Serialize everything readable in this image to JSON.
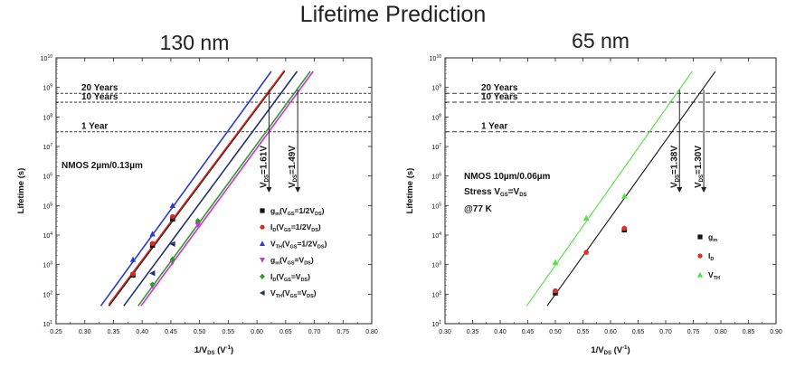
{
  "figure_title": "Lifetime Prediction",
  "chart_data": [
    {
      "type": "line",
      "title": "130 nm",
      "xlabel_main": "1/V",
      "xlabel_sub": "DS",
      "xlabel_unit": "(V",
      "xlabel_unit_sup": "-1",
      "xlabel_unit_end": ")",
      "ylabel": "Lifetime (s)",
      "xlim": [
        0.25,
        0.8
      ],
      "ylim_exp": [
        1,
        10
      ],
      "y_scale": "log",
      "x_ticks": [
        "0.25",
        "0.30",
        "0.35",
        "0.40",
        "0.45",
        "0.50",
        "0.55",
        "0.60",
        "0.65",
        "0.70",
        "0.75",
        "0.80"
      ],
      "y_tick_exps": [
        1,
        2,
        3,
        4,
        5,
        6,
        7,
        8,
        9,
        10
      ],
      "hlines": [
        {
          "label": "20 Years",
          "y": 631000000
        },
        {
          "label": "10 Years",
          "y": 315000000
        },
        {
          "label": "1 Year",
          "y": 31500000
        }
      ],
      "device_label": "NMOS 2µm/0.13µm",
      "vlines": [
        {
          "x": 0.621,
          "label_main": "V",
          "label_sub": "DS",
          "label_val": "=1.61V"
        },
        {
          "x": 0.671,
          "label_main": "V",
          "label_sub": "DS",
          "label_val": "=1.49V"
        }
      ],
      "series": [
        {
          "legend_main": "g",
          "legend_sub": "m",
          "legend_cond": "(V",
          "legend_cond_sub": "GS",
          "legend_cond_val": "=1/2V",
          "legend_cond_sub2": "DS",
          "legend_end": ")",
          "color": "#111111",
          "marker": "square",
          "points": [
            [
              0.384,
              440
            ],
            [
              0.418,
              4500
            ],
            [
              0.453,
              35000
            ]
          ],
          "line": [
            [
              0.342,
              40
            ],
            [
              0.648,
              3500000000
            ]
          ]
        },
        {
          "legend_main": "I",
          "legend_sub": "D",
          "legend_cond": "(V",
          "legend_cond_sub": "GS",
          "legend_cond_val": "=1/2V",
          "legend_cond_sub2": "DS",
          "legend_end": ")",
          "color": "#d42a20",
          "marker": "circle",
          "points": [
            [
              0.384,
              480
            ],
            [
              0.418,
              5200
            ],
            [
              0.453,
              42000
            ]
          ],
          "line": [
            [
              0.342,
              45
            ],
            [
              0.648,
              3800000000
            ]
          ]
        },
        {
          "legend_main": "V",
          "legend_sub": "TH",
          "legend_cond": "(V",
          "legend_cond_sub": "GS",
          "legend_cond_val": "=1/2V",
          "legend_cond_sub2": "DS",
          "legend_end": ")",
          "color": "#2a3ad8",
          "marker": "triangle-up",
          "points": [
            [
              0.384,
              1500
            ],
            [
              0.418,
              11000
            ],
            [
              0.453,
              100000
            ]
          ],
          "line": [
            [
              0.328,
              40
            ],
            [
              0.625,
              3500000000
            ]
          ]
        },
        {
          "legend_main": "g",
          "legend_sub": "m",
          "legend_cond": "(V",
          "legend_cond_sub": "GS",
          "legend_cond_val": "=V",
          "legend_cond_sub2": "DS",
          "legend_end": ")",
          "color": "#d030d8",
          "marker": "triangle-down",
          "points": [
            [
              0.418,
              190
            ],
            [
              0.453,
              1200
            ],
            [
              0.497,
              22000
            ]
          ],
          "line": [
            [
              0.398,
              40
            ],
            [
              0.698,
              3500000000
            ]
          ]
        },
        {
          "legend_main": "I",
          "legend_sub": "D",
          "legend_cond": "(V",
          "legend_cond_sub": "GS",
          "legend_cond_val": "=V",
          "legend_cond_sub2": "DS",
          "legend_end": ")",
          "color": "#2e9a2e",
          "marker": "diamond",
          "points": [
            [
              0.418,
              210
            ],
            [
              0.453,
              1500
            ],
            [
              0.497,
              30000
            ]
          ],
          "line": [
            [
              0.393,
              40
            ],
            [
              0.693,
              3500000000
            ]
          ]
        },
        {
          "legend_main": "V",
          "legend_sub": "TH",
          "legend_cond": "(V",
          "legend_cond_sub": "GS",
          "legend_cond_val": "=V",
          "legend_cond_sub2": "DS",
          "legend_end": ")",
          "color": "#223070",
          "marker": "triangle-left",
          "points": [
            [
              0.418,
              510
            ],
            [
              0.453,
              5000
            ]
          ],
          "line": [
            [
              0.368,
              40
            ],
            [
              0.67,
              3500000000
            ]
          ]
        }
      ]
    },
    {
      "type": "line",
      "title": "65 nm",
      "xlabel_main": "1/V",
      "xlabel_sub": "DS",
      "xlabel_unit": "(V",
      "xlabel_unit_sup": "-1",
      "xlabel_unit_end": ")",
      "ylabel": "Lifetime (s)",
      "xlim": [
        0.3,
        0.9
      ],
      "ylim_exp": [
        1,
        10
      ],
      "y_scale": "log",
      "x_ticks": [
        "0.30",
        "0.35",
        "0.40",
        "0.45",
        "0.50",
        "0.55",
        "0.60",
        "0.65",
        "0.70",
        "0.75",
        "0.80",
        "0.85",
        "0.90"
      ],
      "y_tick_exps": [
        1,
        2,
        3,
        4,
        5,
        6,
        7,
        8,
        9,
        10
      ],
      "hlines": [
        {
          "label": "20 Years",
          "y": 631000000
        },
        {
          "label": "10 Years",
          "y": 315000000
        },
        {
          "label": "1 Year",
          "y": 31500000
        }
      ],
      "device_label": "NMOS 10µm/0.06µm",
      "stress_main": "Stress V",
      "stress_sub": "GS",
      "stress_val": "=V",
      "stress_sub2": "DS",
      "temp_label": "@77 K",
      "vlines": [
        {
          "x": 0.725,
          "label_main": "V",
          "label_sub": "DS",
          "label_val": "=1.38V"
        },
        {
          "x": 0.769,
          "label_main": "V",
          "label_sub": "DS",
          "label_val": "=1.30V"
        }
      ],
      "series": [
        {
          "legend_main": "g",
          "legend_sub": "m",
          "color": "#111111",
          "marker": "square",
          "points": [
            [
              0.5,
              110
            ],
            [
              0.625,
              15000
            ]
          ],
          "line": [
            [
              0.485,
              40
            ],
            [
              0.79,
              3500000000
            ]
          ]
        },
        {
          "legend_main": "I",
          "legend_sub": "D",
          "color": "#e03020",
          "marker": "circle",
          "points": [
            [
              0.5,
              130
            ],
            [
              0.556,
              2600
            ],
            [
              0.625,
              17000
            ]
          ]
        },
        {
          "legend_main": "V",
          "legend_sub": "TH",
          "color": "#50e040",
          "marker": "triangle-up",
          "points": [
            [
              0.5,
              1200
            ],
            [
              0.556,
              38000
            ],
            [
              0.625,
              210000
            ]
          ],
          "line": [
            [
              0.448,
              40
            ],
            [
              0.748,
              3500000000
            ]
          ]
        }
      ]
    }
  ]
}
